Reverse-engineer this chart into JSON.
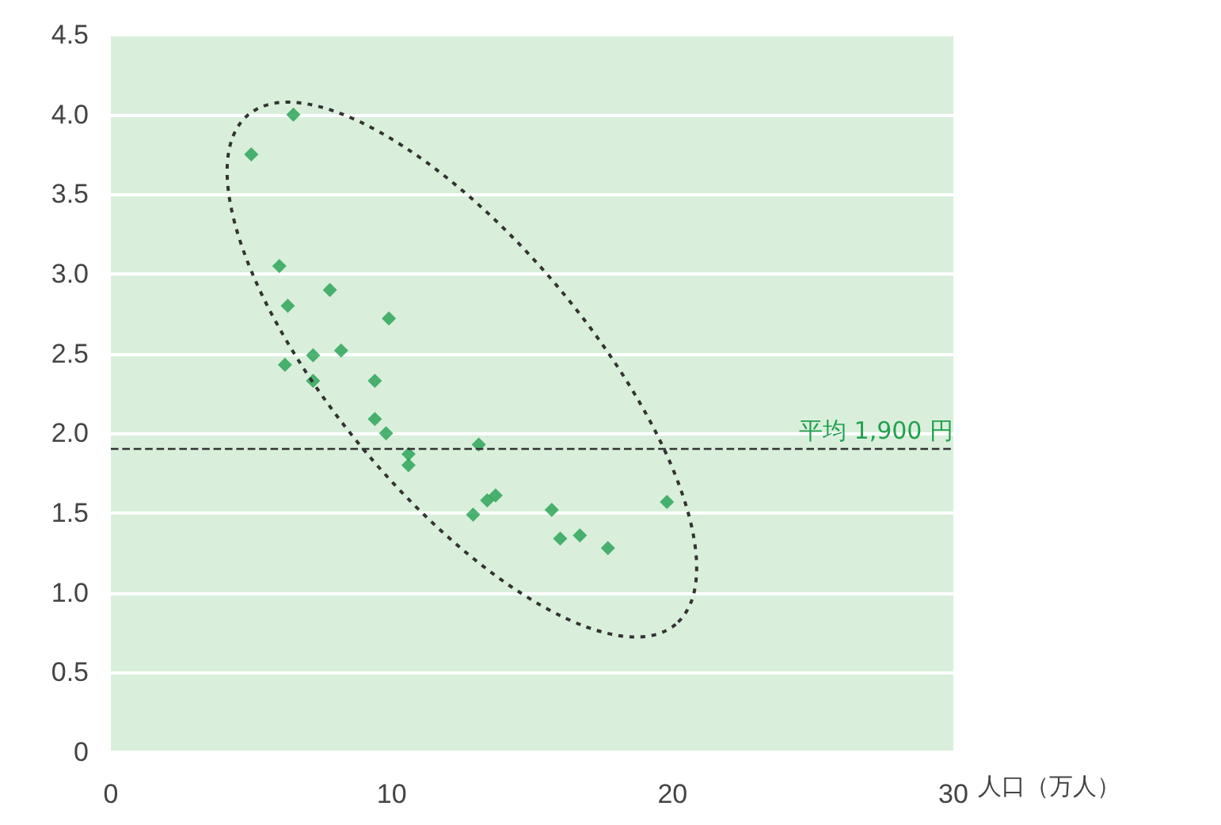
{
  "chart_data": {
    "type": "scatter",
    "xlabel": "人口（万人）",
    "marker": "diamond",
    "grid": "y",
    "x": [
      5.0,
      6.5,
      6.0,
      6.3,
      7.8,
      6.2,
      7.2,
      7.2,
      8.2,
      9.9,
      9.4,
      9.4,
      9.8,
      10.6,
      10.6,
      13.1,
      12.9,
      13.4,
      13.7,
      15.7,
      16.0,
      16.7,
      17.7,
      19.8
    ],
    "series": [
      {
        "color": "#22a050",
        "values": [
          3.75,
          4.0,
          3.05,
          2.8,
          2.9,
          2.43,
          2.49,
          2.33,
          2.52,
          2.72,
          2.33,
          2.09,
          2.0,
          1.87,
          1.8,
          1.93,
          1.49,
          1.58,
          1.61,
          1.52,
          1.34,
          1.36,
          1.28,
          1.57
        ]
      }
    ],
    "xlim": [
      0,
      30
    ],
    "xticks": [
      0,
      10,
      20,
      30
    ],
    "ylim": [
      0,
      4.5
    ],
    "yticks": [
      0,
      {
        "value": 0.5,
        "label": "0.5"
      },
      {
        "value": 1,
        "label": "1.0"
      },
      {
        "value": 1.5,
        "label": "1.5"
      },
      {
        "value": 2,
        "label": "2.0"
      },
      {
        "value": 2.5,
        "label": "2.5"
      },
      {
        "value": 3,
        "label": "3.0"
      },
      {
        "value": 3.5,
        "label": "3.5"
      },
      {
        "value": 4,
        "label": "4.0"
      },
      {
        "value": 4.5,
        "label": "4.5"
      }
    ],
    "ref_lines": [
      {
        "axis": "y",
        "value": 1.9,
        "label": "平均 1,900 円",
        "color": "#333333",
        "line_style": "dashed"
      }
    ]
  }
}
